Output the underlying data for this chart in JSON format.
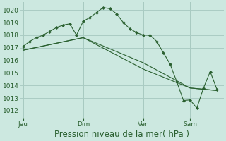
{
  "background_color": "#cce8e0",
  "grid_color": "#aaccc4",
  "line_color": "#2a6030",
  "marker_color": "#2a6030",
  "xlabel": "Pression niveau de la mer( hPa )",
  "xlabel_fontsize": 8.5,
  "yticks": [
    1012,
    1013,
    1014,
    1015,
    1016,
    1017,
    1018,
    1019,
    1020
  ],
  "ylim": [
    1011.4,
    1020.6
  ],
  "day_labels": [
    "Jeu",
    "Dim",
    "Ven",
    "Sam"
  ],
  "day_positions": [
    0,
    9,
    18,
    25
  ],
  "xlim": [
    -0.5,
    30
  ],
  "series0": {
    "x": [
      0,
      1,
      2,
      3,
      4,
      5,
      6,
      7,
      8,
      9,
      10,
      11,
      12,
      13,
      14,
      15,
      16,
      17,
      18,
      19,
      20,
      21,
      22,
      23,
      24,
      25,
      26,
      27,
      28,
      29
    ],
    "y": [
      1017.1,
      1017.5,
      1017.8,
      1018.0,
      1018.3,
      1018.6,
      1018.8,
      1018.9,
      1018.0,
      1019.1,
      1019.4,
      1019.8,
      1020.2,
      1020.1,
      1019.7,
      1019.0,
      1018.5,
      1018.2,
      1018.0,
      1018.0,
      1017.5,
      1016.6,
      1015.7,
      1014.3,
      1012.8,
      1012.85,
      1012.2,
      1013.8,
      1015.1,
      1013.7
    ]
  },
  "series1": {
    "x": [
      0,
      9,
      18,
      25,
      29
    ],
    "y": [
      1016.8,
      1017.8,
      1015.8,
      1013.8,
      1013.6
    ]
  },
  "series2": {
    "x": [
      0,
      9,
      18,
      25,
      29
    ],
    "y": [
      1016.8,
      1017.8,
      1015.3,
      1013.8,
      1013.6
    ]
  }
}
